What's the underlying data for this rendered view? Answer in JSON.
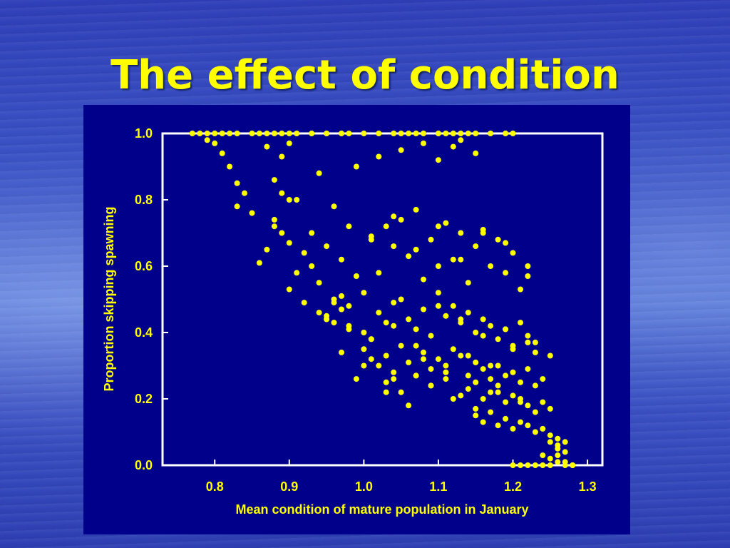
{
  "slide": {
    "title": "The effect of condition"
  },
  "colors": {
    "background": "#3a50c2",
    "panel": "#00008b",
    "accent": "#ffff00",
    "axes": "#ffffff"
  },
  "chart_data": {
    "type": "scatter",
    "title": "",
    "xlabel": "Mean condition of mature population in January",
    "ylabel": "Proportion skipping spawning",
    "xlim": [
      0.73,
      1.32
    ],
    "ylim": [
      0.0,
      1.0
    ],
    "xticks": [
      0.8,
      0.9,
      1.0,
      1.1,
      1.2,
      1.3
    ],
    "xtick_labels": [
      "0.8",
      "0.9",
      "1.0",
      "1.1",
      "1.2",
      "1.3"
    ],
    "yticks": [
      0.0,
      0.2,
      0.4,
      0.6,
      0.8,
      1.0
    ],
    "ytick_labels": [
      "0.0",
      "0.2",
      "0.4",
      "0.6",
      "0.8",
      "1.0"
    ],
    "grid": false,
    "legend": "none",
    "series": [
      {
        "color": "#ffff00",
        "x": [
          0.77,
          0.78,
          0.79,
          0.8,
          0.81,
          0.82,
          0.83,
          0.85,
          0.86,
          0.87,
          0.88,
          0.89,
          0.9,
          0.91,
          0.93,
          0.95,
          0.97,
          0.98,
          1.0,
          1.02,
          1.04,
          1.05,
          1.06,
          1.07,
          1.08,
          1.1,
          1.11,
          1.12,
          1.13,
          1.14,
          1.15,
          1.17,
          1.19,
          1.2,
          0.79,
          0.8,
          0.81,
          0.82,
          0.83,
          0.84,
          0.87,
          0.88,
          0.89,
          0.9,
          0.89,
          0.91,
          0.94,
          0.99,
          1.02,
          1.05,
          1.08,
          1.1,
          1.12,
          1.13,
          1.15,
          0.86,
          0.87,
          0.88,
          0.89,
          0.9,
          0.91,
          0.92,
          0.93,
          0.94,
          0.95,
          0.96,
          0.97,
          0.98,
          0.99,
          1.0,
          1.01,
          1.02,
          1.03,
          1.04,
          1.05,
          1.06,
          1.07,
          1.08,
          1.09,
          1.1,
          1.11,
          1.12,
          1.13,
          1.14,
          1.15,
          1.16,
          1.17,
          1.18,
          1.19,
          1.2,
          1.21,
          1.22,
          0.94,
          0.95,
          0.96,
          0.97,
          0.98,
          0.96,
          0.97,
          0.95,
          1.0,
          1.01,
          1.02,
          1.03,
          1.04,
          1.05,
          1.06,
          1.07,
          1.08,
          1.09,
          1.1,
          1.11,
          1.12,
          1.13,
          1.14,
          1.15,
          1.16,
          1.17,
          1.18,
          1.19,
          1.2,
          1.21,
          1.22,
          1.23,
          1.0,
          1.01,
          1.02,
          1.03,
          1.04,
          1.05,
          1.06,
          1.07,
          1.08,
          1.09,
          1.1,
          1.11,
          1.12,
          1.13,
          1.14,
          1.15,
          1.16,
          1.17,
          1.18,
          1.19,
          1.2,
          1.21,
          1.22,
          1.23,
          1.24,
          1.03,
          1.05,
          1.07,
          1.09,
          1.11,
          1.13,
          1.14,
          1.15,
          1.16,
          1.17,
          1.18,
          1.19,
          1.2,
          1.21,
          1.22,
          1.23,
          1.24,
          1.25,
          1.15,
          1.16,
          1.17,
          1.18,
          1.19,
          1.2,
          1.21,
          1.22,
          1.23,
          1.24,
          1.25,
          1.26,
          1.27,
          1.2,
          1.21,
          1.22,
          1.23,
          1.24,
          1.25,
          1.25,
          1.26,
          1.26,
          1.27,
          1.27,
          1.28,
          1.25,
          1.26,
          1.24,
          1.26,
          1.27,
          1.28,
          0.83,
          0.85,
          0.88,
          0.9,
          0.93,
          0.96,
          0.98,
          1.01,
          1.04,
          1.07,
          1.1,
          1.13,
          1.16,
          1.19,
          1.22,
          0.99,
          1.03,
          1.06,
          1.09,
          1.12,
          1.15,
          1.18,
          1.21,
          0.97,
          1.0,
          1.04,
          1.08,
          1.11,
          1.14,
          1.17,
          1.2,
          1.23,
          0.9,
          0.92,
          0.95,
          0.98,
          1.01,
          1.04,
          1.07,
          1.1,
          1.13,
          1.16,
          1.19,
          1.22,
          1.25
        ],
        "y": [
          1.0,
          1.0,
          1.0,
          1.0,
          1.0,
          1.0,
          1.0,
          1.0,
          1.0,
          1.0,
          1.0,
          1.0,
          1.0,
          1.0,
          1.0,
          1.0,
          1.0,
          1.0,
          1.0,
          1.0,
          1.0,
          1.0,
          1.0,
          1.0,
          1.0,
          1.0,
          1.0,
          1.0,
          1.0,
          1.0,
          1.0,
          1.0,
          1.0,
          1.0,
          0.98,
          0.97,
          0.94,
          0.9,
          0.85,
          0.82,
          0.96,
          0.86,
          0.93,
          0.97,
          0.82,
          0.8,
          0.88,
          0.9,
          0.93,
          0.95,
          0.97,
          0.92,
          0.96,
          0.98,
          0.94,
          0.61,
          0.65,
          0.72,
          0.7,
          0.67,
          0.58,
          0.64,
          0.6,
          0.55,
          0.66,
          0.5,
          0.62,
          0.48,
          0.57,
          0.52,
          0.69,
          0.58,
          0.72,
          0.66,
          0.74,
          0.63,
          0.77,
          0.56,
          0.68,
          0.6,
          0.73,
          0.62,
          0.7,
          0.55,
          0.66,
          0.71,
          0.6,
          0.68,
          0.58,
          0.64,
          0.53,
          0.57,
          0.46,
          0.44,
          0.49,
          0.47,
          0.42,
          0.43,
          0.51,
          0.45,
          0.4,
          0.38,
          0.46,
          0.43,
          0.49,
          0.5,
          0.44,
          0.41,
          0.47,
          0.39,
          0.52,
          0.45,
          0.48,
          0.43,
          0.46,
          0.4,
          0.44,
          0.42,
          0.38,
          0.41,
          0.36,
          0.43,
          0.39,
          0.34,
          0.35,
          0.32,
          0.3,
          0.33,
          0.28,
          0.36,
          0.31,
          0.27,
          0.34,
          0.29,
          0.32,
          0.3,
          0.35,
          0.33,
          0.27,
          0.31,
          0.29,
          0.26,
          0.3,
          0.27,
          0.28,
          0.25,
          0.29,
          0.24,
          0.26,
          0.25,
          0.22,
          0.27,
          0.24,
          0.26,
          0.21,
          0.23,
          0.25,
          0.2,
          0.22,
          0.24,
          0.19,
          0.21,
          0.2,
          0.18,
          0.16,
          0.19,
          0.17,
          0.15,
          0.13,
          0.16,
          0.12,
          0.14,
          0.11,
          0.13,
          0.12,
          0.1,
          0.11,
          0.09,
          0.08,
          0.07,
          0.0,
          0.0,
          0.0,
          0.0,
          0.0,
          0.0,
          0.02,
          0.03,
          0.05,
          0.04,
          0.01,
          0.0,
          0.07,
          0.06,
          0.03,
          0.01,
          0.0,
          0.0,
          0.78,
          0.76,
          0.74,
          0.8,
          0.7,
          0.78,
          0.72,
          0.68,
          0.75,
          0.65,
          0.72,
          0.62,
          0.7,
          0.67,
          0.6,
          0.26,
          0.22,
          0.18,
          0.24,
          0.2,
          0.17,
          0.22,
          0.19,
          0.34,
          0.3,
          0.26,
          0.32,
          0.28,
          0.33,
          0.3,
          0.35,
          0.37,
          0.53,
          0.49,
          0.44,
          0.41,
          0.38,
          0.42,
          0.36,
          0.48,
          0.44,
          0.39,
          0.41,
          0.37,
          0.33
        ]
      }
    ]
  }
}
